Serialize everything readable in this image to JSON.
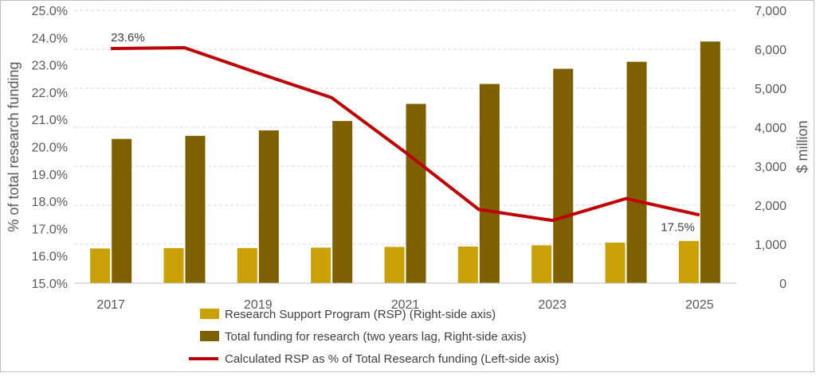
{
  "chart_data": {
    "type": "bar+line",
    "categories": [
      "2017",
      "2018",
      "2019",
      "2020",
      "2021",
      "2022",
      "2023",
      "2024",
      "2025"
    ],
    "x_tick_labels": [
      "2017",
      "",
      "2019",
      "",
      "2021",
      "",
      "2023",
      "",
      "2025"
    ],
    "series": [
      {
        "name": "Research Support Program (RSP) (Right-side axis)",
        "type": "bar",
        "axis": "right",
        "color": "#C9A005",
        "values": [
          890,
          900,
          900,
          910,
          930,
          940,
          970,
          1040,
          1080
        ]
      },
      {
        "name": "Total funding for research (two years lag, Right-side axis)",
        "type": "bar",
        "axis": "right",
        "color": "#7F6000",
        "values": [
          3700,
          3780,
          3920,
          4160,
          4600,
          5110,
          5500,
          5680,
          6200
        ]
      },
      {
        "name": "Calculated RSP as % of Total Research funding (Left-side axis)",
        "type": "line",
        "axis": "left",
        "color": "#C00000",
        "values": [
          23.6,
          23.63,
          22.7,
          21.8,
          19.8,
          17.7,
          17.3,
          18.1,
          17.5
        ]
      }
    ],
    "data_labels": [
      {
        "series": 2,
        "index": 0,
        "text": "23.6%"
      },
      {
        "series": 2,
        "index": 8,
        "text": "17.5%"
      }
    ],
    "y_left": {
      "label": "% of total research funding",
      "lim": [
        15.0,
        25.0
      ],
      "ticks": [
        "15.0%",
        "16.0%",
        "17.0%",
        "18.0%",
        "19.0%",
        "20.0%",
        "21.0%",
        "22.0%",
        "23.0%",
        "24.0%",
        "25.0%"
      ]
    },
    "y_right": {
      "label": "$ million",
      "lim": [
        0,
        7000
      ],
      "ticks": [
        "0",
        "1,000",
        "2,000",
        "3,000",
        "4,000",
        "5,000",
        "6,000",
        "7,000"
      ]
    },
    "grid": true,
    "legend_position": "bottom"
  }
}
